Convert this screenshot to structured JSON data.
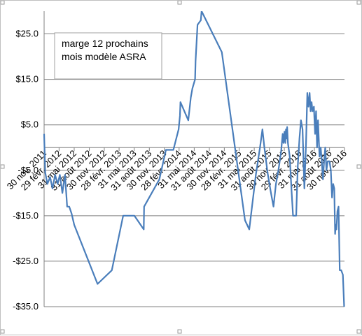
{
  "chart_data": {
    "type": "line",
    "title": "",
    "xlabel": "",
    "ylabel": "",
    "ylim": [
      -35,
      30
    ],
    "xlim": [
      "2011-11-30",
      "2016-11-30"
    ],
    "grid": "horizontal",
    "series_color": "#4a7ebb",
    "grid_color": "#808080",
    "legend_box_text": [
      "marge 12 prochains",
      "mois modèle ASRA"
    ],
    "y_ticks": [
      {
        "value": 25,
        "label": "$25.0"
      },
      {
        "value": 15,
        "label": "$15.0"
      },
      {
        "value": 5,
        "label": "$5.0"
      },
      {
        "value": -5,
        "label": "-$5.0"
      },
      {
        "value": -15,
        "label": "-$15.0"
      },
      {
        "value": -25,
        "label": "-$25.0"
      },
      {
        "value": -35,
        "label": "-$35.0"
      }
    ],
    "x_ticks": [
      {
        "date": "2011-11-30",
        "label": "30 nov. 2011"
      },
      {
        "date": "2012-02-29",
        "label": "29 févr. 2012"
      },
      {
        "date": "2012-05-31",
        "label": "31 mai 2012"
      },
      {
        "date": "2012-08-31",
        "label": "31 août 2012"
      },
      {
        "date": "2012-11-30",
        "label": "30 nov. 2012"
      },
      {
        "date": "2013-02-28",
        "label": "28 févr. 2013"
      },
      {
        "date": "2013-05-31",
        "label": "31 mai 2013"
      },
      {
        "date": "2013-08-31",
        "label": "31 août 2013"
      },
      {
        "date": "2013-11-30",
        "label": "30 nov. 2013"
      },
      {
        "date": "2014-02-28",
        "label": "28 févr. 2014"
      },
      {
        "date": "2014-05-31",
        "label": "31 mai 2014"
      },
      {
        "date": "2014-08-31",
        "label": "31 août 2014"
      },
      {
        "date": "2014-11-30",
        "label": "30 nov. 2014"
      },
      {
        "date": "2015-02-28",
        "label": "28 févr. 2015"
      },
      {
        "date": "2015-05-31",
        "label": "31 mai 2015"
      },
      {
        "date": "2015-08-31",
        "label": "31 août 2015"
      },
      {
        "date": "2015-11-30",
        "label": "30 nov. 2015"
      },
      {
        "date": "2016-02-29",
        "label": "29 févr. 2016"
      },
      {
        "date": "2016-05-31",
        "label": "31 mai 2016"
      },
      {
        "date": "2016-08-31",
        "label": "31 août 2016"
      },
      {
        "date": "2016-11-30",
        "label": "30 nov. 2016"
      }
    ],
    "series": [
      {
        "points": [
          {
            "x": "2011-11-30",
            "y": 3.0
          },
          {
            "x": "2011-12-07",
            "y": -5.5
          },
          {
            "x": "2011-12-20",
            "y": -8.0
          },
          {
            "x": "2012-01-05",
            "y": -6.5
          },
          {
            "x": "2012-01-20",
            "y": -9.0
          },
          {
            "x": "2012-02-05",
            "y": -6.0
          },
          {
            "x": "2012-02-20",
            "y": -8.0
          },
          {
            "x": "2012-03-05",
            "y": -6.0
          },
          {
            "x": "2012-03-20",
            "y": -10.0
          },
          {
            "x": "2012-04-05",
            "y": -6.0
          },
          {
            "x": "2012-04-18",
            "y": -13.0
          },
          {
            "x": "2012-05-01",
            "y": -13.0
          },
          {
            "x": "2012-05-15",
            "y": -14.5
          },
          {
            "x": "2012-05-31",
            "y": -17.0
          },
          {
            "x": "2012-10-20",
            "y": -30.0
          },
          {
            "x": "2013-01-15",
            "y": -27.0
          },
          {
            "x": "2013-03-25",
            "y": -15.0
          },
          {
            "x": "2013-06-01",
            "y": -15.0
          },
          {
            "x": "2013-07-28",
            "y": -18.0
          },
          {
            "x": "2013-07-30",
            "y": -13.0
          },
          {
            "x": "2013-10-31",
            "y": -7.0
          },
          {
            "x": "2013-12-10",
            "y": -0.5
          },
          {
            "x": "2014-01-24",
            "y": -0.5
          },
          {
            "x": "2014-02-25",
            "y": 4.0
          },
          {
            "x": "2014-03-05",
            "y": 7.0
          },
          {
            "x": "2014-03-08",
            "y": 10.0
          },
          {
            "x": "2014-04-25",
            "y": 6.0
          },
          {
            "x": "2014-05-10",
            "y": 11.0
          },
          {
            "x": "2014-05-20",
            "y": 13.0
          },
          {
            "x": "2014-06-05",
            "y": 15.0
          },
          {
            "x": "2014-06-08",
            "y": 19.0
          },
          {
            "x": "2014-06-20",
            "y": 27.0
          },
          {
            "x": "2014-07-10",
            "y": 28.0
          },
          {
            "x": "2014-07-15",
            "y": 30.0
          },
          {
            "x": "2014-11-15",
            "y": 21.0
          },
          {
            "x": "2015-04-05",
            "y": -16.0
          },
          {
            "x": "2015-05-01",
            "y": -18.0
          },
          {
            "x": "2015-06-10",
            "y": -6.0
          },
          {
            "x": "2015-07-05",
            "y": 0.0
          },
          {
            "x": "2015-07-20",
            "y": 4.0
          },
          {
            "x": "2015-08-01",
            "y": 0.0
          },
          {
            "x": "2015-08-20",
            "y": -5.5
          },
          {
            "x": "2015-09-10",
            "y": -10.0
          },
          {
            "x": "2015-09-25",
            "y": -13.0
          },
          {
            "x": "2015-10-10",
            "y": -8.0
          },
          {
            "x": "2015-10-25",
            "y": -5.0
          },
          {
            "x": "2015-11-10",
            "y": -1.0
          },
          {
            "x": "2015-11-20",
            "y": 3.0
          },
          {
            "x": "2015-11-25",
            "y": 1.0
          },
          {
            "x": "2015-12-01",
            "y": 3.5
          },
          {
            "x": "2015-12-06",
            "y": 1.0
          },
          {
            "x": "2015-12-10",
            "y": 4.0
          },
          {
            "x": "2015-12-14",
            "y": 2.0
          },
          {
            "x": "2015-12-17",
            "y": 4.5
          },
          {
            "x": "2015-12-22",
            "y": 1.0
          },
          {
            "x": "2016-01-02",
            "y": -2.0
          },
          {
            "x": "2016-01-12",
            "y": -9.0
          },
          {
            "x": "2016-01-22",
            "y": -15.0
          },
          {
            "x": "2016-02-10",
            "y": -15.0
          },
          {
            "x": "2016-02-20",
            "y": -4.0
          },
          {
            "x": "2016-03-01",
            "y": 2.0
          },
          {
            "x": "2016-03-10",
            "y": 6.0
          },
          {
            "x": "2016-03-20",
            "y": 4.0
          },
          {
            "x": "2016-03-31",
            "y": -9.0
          },
          {
            "x": "2016-04-10",
            "y": 1.0
          },
          {
            "x": "2016-04-18",
            "y": 12.0
          },
          {
            "x": "2016-04-25",
            "y": 9.0
          },
          {
            "x": "2016-05-02",
            "y": 12.0
          },
          {
            "x": "2016-05-08",
            "y": 8.0
          },
          {
            "x": "2016-05-14",
            "y": 10.0
          },
          {
            "x": "2016-05-20",
            "y": 8.0
          },
          {
            "x": "2016-05-28",
            "y": 9.0
          },
          {
            "x": "2016-06-04",
            "y": 3.0
          },
          {
            "x": "2016-06-10",
            "y": 8.0
          },
          {
            "x": "2016-06-16",
            "y": 0.0
          },
          {
            "x": "2016-06-22",
            "y": 6.0
          },
          {
            "x": "2016-07-01",
            "y": -2.0
          },
          {
            "x": "2016-07-08",
            "y": 0.0
          },
          {
            "x": "2016-07-15",
            "y": -3.0
          },
          {
            "x": "2016-07-22",
            "y": -7.0
          },
          {
            "x": "2016-07-29",
            "y": -3.0
          },
          {
            "x": "2016-08-05",
            "y": 0.0
          },
          {
            "x": "2016-08-12",
            "y": -5.0
          },
          {
            "x": "2016-08-20",
            "y": -3.0
          },
          {
            "x": "2016-08-31",
            "y": -3.0
          },
          {
            "x": "2016-09-08",
            "y": -5.0
          },
          {
            "x": "2016-09-15",
            "y": -11.0
          },
          {
            "x": "2016-09-22",
            "y": -8.0
          },
          {
            "x": "2016-09-29",
            "y": -9.0
          },
          {
            "x": "2016-10-04",
            "y": -19.0
          },
          {
            "x": "2016-10-08",
            "y": -17.0
          },
          {
            "x": "2016-10-12",
            "y": -18.0
          },
          {
            "x": "2016-10-18",
            "y": -14.0
          },
          {
            "x": "2016-10-25",
            "y": -13.0
          },
          {
            "x": "2016-11-01",
            "y": -27.0
          },
          {
            "x": "2016-11-10",
            "y": -27.0
          },
          {
            "x": "2016-11-20",
            "y": -28.0
          },
          {
            "x": "2016-11-28",
            "y": -35.0
          }
        ]
      }
    ]
  }
}
